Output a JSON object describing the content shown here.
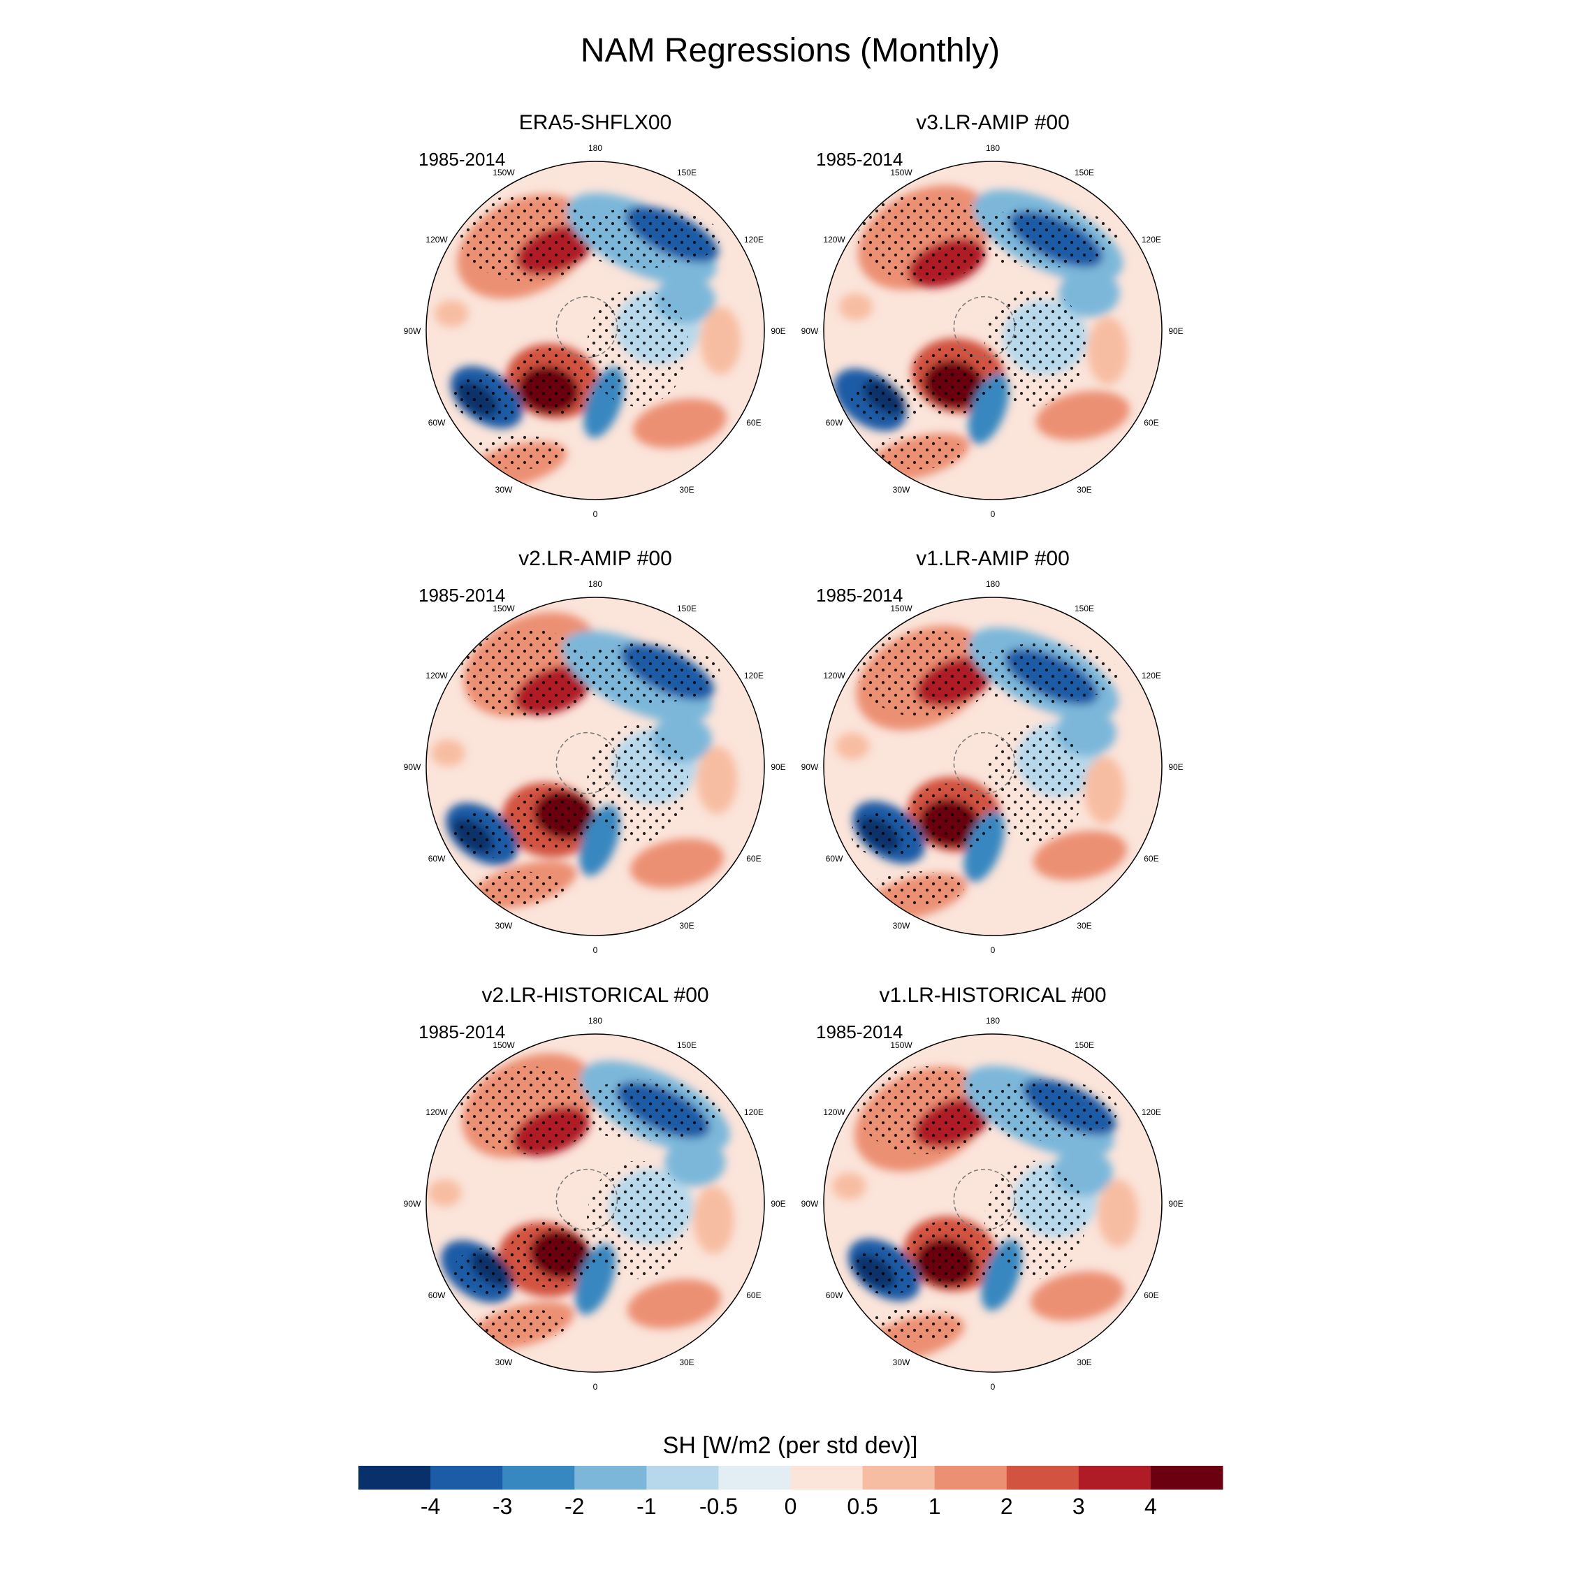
{
  "title": "NAM Regressions (Monthly)",
  "period_label": "1985-2014",
  "panel_titles": [
    "ERA5-SHFLX00",
    "v3.LR-AMIP  #00",
    "v2.LR-AMIP  #00",
    "v1.LR-AMIP  #00",
    "v2.LR-HISTORICAL  #00",
    "v1.LR-HISTORICAL  #00"
  ],
  "longitude_labels": [
    "180",
    "150E",
    "120E",
    "90E",
    "60E",
    "30E",
    "0",
    "30W",
    "60W",
    "90W",
    "120W",
    "150W"
  ],
  "colorbar": {
    "title": "SH [W/m2 (per std dev)]",
    "colors": [
      "#08306b",
      "#1c5ba6",
      "#3787c0",
      "#7cb7da",
      "#b7d8eb",
      "#e3edf4",
      "#fbe4da",
      "#f7bda2",
      "#ec9073",
      "#d2533f",
      "#b01c26",
      "#6b0010"
    ],
    "tick_labels": [
      "-4",
      "-3",
      "-2",
      "-1",
      "-0.5",
      "0",
      "0.5",
      "1",
      "2",
      "3",
      "4"
    ]
  },
  "chart_data": {
    "type": "heatmap",
    "projection": "north polar stereographic",
    "title": "NAM Regressions (Monthly)",
    "variable": "SH [W/m2 (per std dev)]",
    "period": "1985-2014",
    "contour_levels": [
      -4,
      -3,
      -2,
      -1,
      -0.5,
      0,
      0.5,
      1,
      2,
      3,
      4
    ],
    "stippling": "significant regions marked with dots",
    "panels": [
      {
        "name": "ERA5-SHFLX00"
      },
      {
        "name": "v3.LR-AMIP  #00"
      },
      {
        "name": "v2.LR-AMIP  #00"
      },
      {
        "name": "v1.LR-AMIP  #00"
      },
      {
        "name": "v2.LR-HISTORICAL  #00"
      },
      {
        "name": "v1.LR-HISTORICAL  #00"
      }
    ]
  }
}
